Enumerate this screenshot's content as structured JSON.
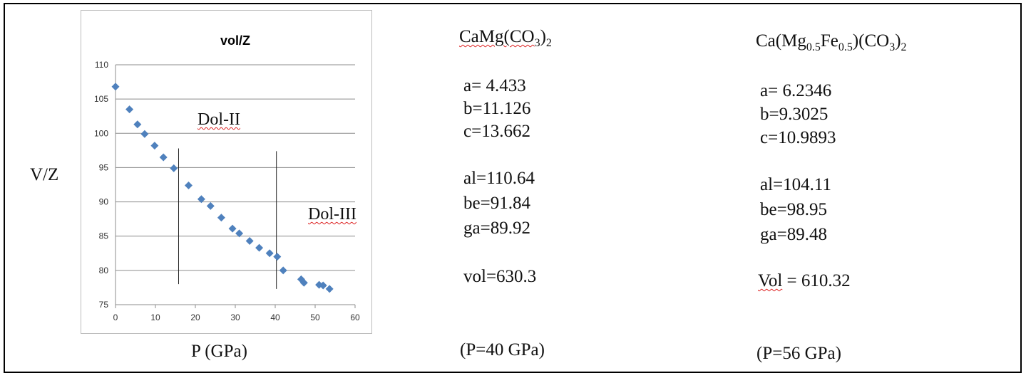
{
  "ylabel_outer": "V/Z",
  "xlabel_outer": "P (GPa)",
  "chart_data": {
    "type": "scatter",
    "title": "vol/Z",
    "xlabel": "",
    "ylabel": "",
    "xlim": [
      0,
      60
    ],
    "ylim": [
      75,
      110
    ],
    "x_ticks": [
      0,
      10,
      20,
      30,
      40,
      50,
      60
    ],
    "y_ticks": [
      75,
      80,
      85,
      90,
      95,
      100,
      105,
      110
    ],
    "grid": "horizontal",
    "marker_color": "#4f81bd",
    "series": [
      {
        "x": [
          0,
          3.5,
          5.5,
          7.3,
          9.8,
          12,
          14.6,
          18.3,
          21.5,
          23.8,
          26.5,
          29.3,
          31,
          33.6,
          36,
          38.6,
          40.5,
          42,
          46.5,
          47.2,
          51,
          52,
          53.6
        ],
        "y": [
          106.8,
          103.5,
          101.3,
          99.9,
          98.2,
          96.5,
          94.9,
          92.4,
          90.4,
          89.4,
          87.7,
          86.1,
          85.4,
          84.3,
          83.3,
          82.5,
          82.0,
          80.0,
          78.7,
          78.2,
          77.9,
          77.8,
          77.3
        ]
      }
    ],
    "vertical_lines_x": [
      15.8,
      40.3
    ],
    "annotations": [
      "Dol-II",
      "Dol-III"
    ]
  },
  "col1": {
    "formula": {
      "a": "CaMg(CO",
      "sub1": "3",
      "b": ")",
      "sub2": "2"
    },
    "a": "a= 4.433",
    "b": "b=11.126",
    "c": "c=13.662",
    "al": "al=110.64",
    "be": "be=91.84",
    "ga": "ga=89.92",
    "vol": "vol=630.3",
    "pressure": "(P=40 GPa)"
  },
  "col2": {
    "formula": {
      "a": "Ca(Mg",
      "sub1": "0.5",
      "b": "Fe",
      "sub2": "0.5",
      "c": ")(CO",
      "sub3": "3",
      "d": ")",
      "sub4": "2"
    },
    "a": "a= 6.2346",
    "b": "b=9.3025",
    "c": "c=10.9893",
    "al": "al=104.11",
    "be": "be=98.95",
    "ga": "ga=89.48",
    "vol_word": "Vol",
    "vol_rest": " = 610.32",
    "pressure": "(P=56 GPa)"
  }
}
